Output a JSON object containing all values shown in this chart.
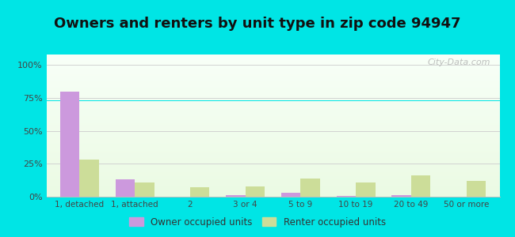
{
  "title": "Owners and renters by unit type in zip code 94947",
  "categories": [
    "1, detached",
    "1, attached",
    "2",
    "3 or 4",
    "5 to 9",
    "10 to 19",
    "20 to 49",
    "50 or more"
  ],
  "owner_values": [
    80,
    13,
    0,
    1,
    3,
    0.5,
    1,
    0
  ],
  "renter_values": [
    28,
    11,
    7,
    8,
    14,
    11,
    16,
    12
  ],
  "owner_color": "#cc99dd",
  "renter_color": "#ccdd99",
  "background_outer": "#00e5e5",
  "title_fontsize": 13,
  "legend_labels": [
    "Owner occupied units",
    "Renter occupied units"
  ],
  "yticks": [
    0,
    25,
    50,
    75,
    100
  ],
  "ytick_labels": [
    "0%",
    "25%",
    "50%",
    "75%",
    "100%"
  ],
  "ylim": [
    0,
    108
  ],
  "bar_width": 0.35,
  "watermark": "City-Data.com"
}
